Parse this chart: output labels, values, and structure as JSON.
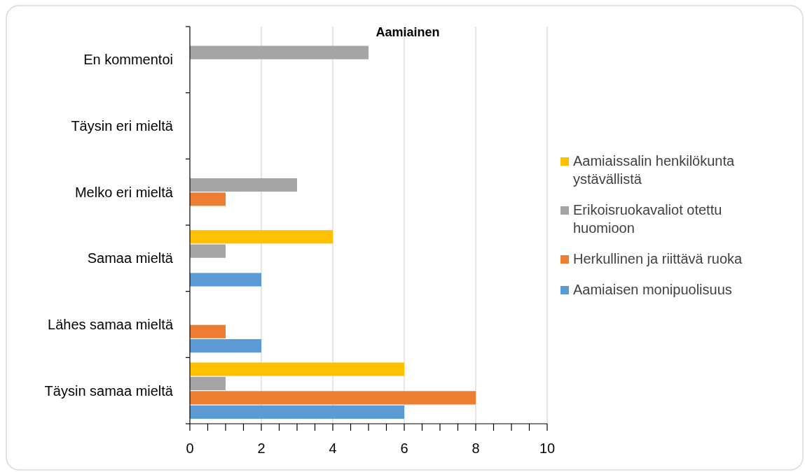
{
  "chart_data": {
    "type": "bar",
    "orientation": "horizontal",
    "title": "Aamiainen",
    "categories": [
      "En kommentoi",
      "Täysin eri mieltä",
      "Melko eri mieltä",
      "Samaa mieltä",
      "Lähes samaa mieltä",
      "Täysin samaa mieltä"
    ],
    "series": [
      {
        "name": "Aamiaisen monipuolisuus",
        "color": "#5b9bd5",
        "values": [
          null,
          null,
          null,
          2,
          2,
          6
        ]
      },
      {
        "name": "Herkullinen ja riittävä ruoka",
        "color": "#ed7d31",
        "values": [
          null,
          null,
          1,
          null,
          1,
          8
        ]
      },
      {
        "name": "Erikoisruokavaliot otettu huomioon",
        "color": "#a5a5a5",
        "values": [
          5,
          null,
          3,
          1,
          null,
          1
        ]
      },
      {
        "name": "Aamiaissalin henkilökunta ystävällistä",
        "color": "#ffc000",
        "values": [
          null,
          null,
          null,
          4,
          null,
          6
        ]
      }
    ],
    "xlim": [
      0,
      10
    ],
    "xticks": [
      0,
      {
        "value": 0.5,
        "label": null
      },
      2,
      {
        "value": 1,
        "label": null
      },
      {
        "value": 1.5,
        "label": null
      },
      {
        "value": 2.5,
        "label": null
      },
      {
        "value": 3,
        "label": null
      },
      {
        "value": 3.5,
        "label": null
      },
      4,
      {
        "value": 4.5,
        "label": null
      },
      {
        "value": 5,
        "label": null
      },
      {
        "value": 5.5,
        "label": null
      },
      6,
      {
        "value": 6.5,
        "label": null
      },
      {
        "value": 7,
        "label": null
      },
      {
        "value": 7.5,
        "label": null
      },
      8,
      {
        "value": 8.5,
        "label": null
      },
      {
        "value": 9,
        "label": null
      },
      {
        "value": 9.5,
        "label": null
      },
      10
    ],
    "grid": "x",
    "legend": "right"
  }
}
